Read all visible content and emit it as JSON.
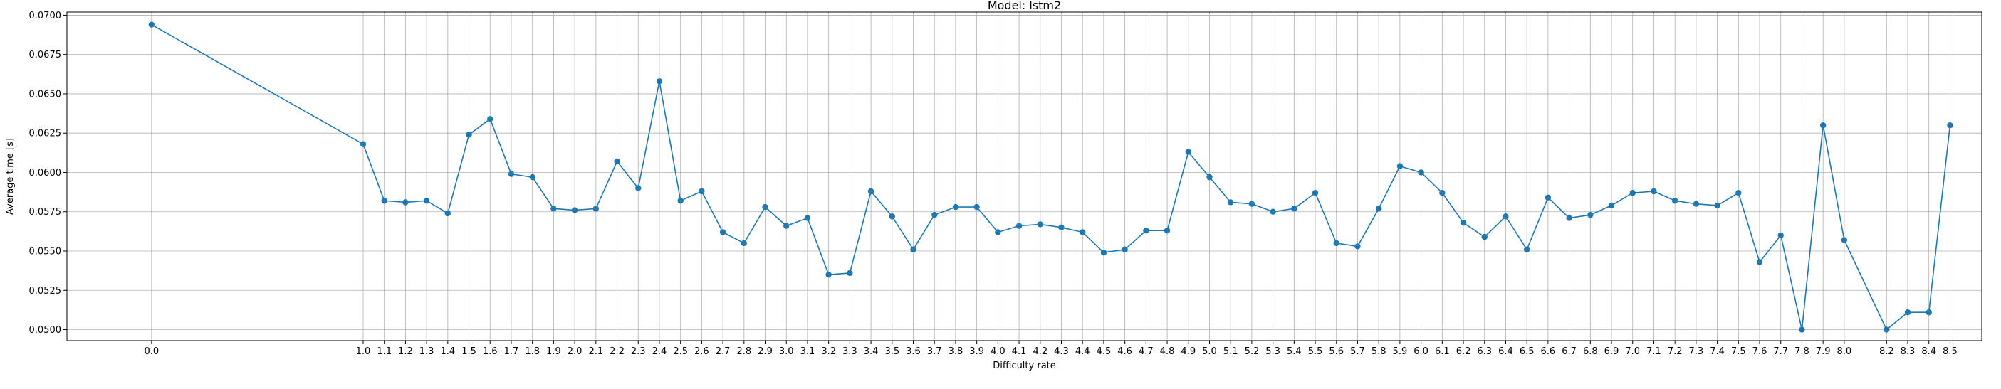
{
  "chart_data": {
    "type": "line",
    "title": "Model: lstm2",
    "xlabel": "Difficulty rate",
    "ylabel": "Average time [s]",
    "xlim": [
      -0.4,
      8.65
    ],
    "ylim": [
      0.0493,
      0.0702
    ],
    "grid": true,
    "y_ticks": [
      "0.0500",
      "0.0525",
      "0.0550",
      "0.0575",
      "0.0600",
      "0.0625",
      "0.0650",
      "0.0675",
      "0.0700"
    ],
    "x_ticks": [
      "0.0",
      "1.0",
      "1.1",
      "1.2",
      "1.3",
      "1.4",
      "1.5",
      "1.6",
      "1.7",
      "1.8",
      "1.9",
      "2.0",
      "2.1",
      "2.2",
      "2.3",
      "2.4",
      "2.5",
      "2.6",
      "2.7",
      "2.8",
      "2.9",
      "3.0",
      "3.1",
      "3.2",
      "3.3",
      "3.4",
      "3.5",
      "3.6",
      "3.7",
      "3.8",
      "3.9",
      "4.0",
      "4.1",
      "4.2",
      "4.3",
      "4.4",
      "4.5",
      "4.6",
      "4.7",
      "4.8",
      "4.9",
      "5.0",
      "5.1",
      "5.2",
      "5.3",
      "5.4",
      "5.5",
      "5.6",
      "5.7",
      "5.8",
      "5.9",
      "6.0",
      "6.1",
      "6.2",
      "6.3",
      "6.4",
      "6.5",
      "6.6",
      "6.7",
      "6.8",
      "6.9",
      "7.0",
      "7.1",
      "7.2",
      "7.3",
      "7.4",
      "7.5",
      "7.6",
      "7.7",
      "7.8",
      "7.9",
      "8.0",
      "8.2",
      "8.3",
      "8.4",
      "8.5"
    ],
    "series": [
      {
        "color": "#1f77b4",
        "x": [
          0.0,
          1.0,
          1.1,
          1.2,
          1.3,
          1.4,
          1.5,
          1.6,
          1.7,
          1.8,
          1.9,
          2.0,
          2.1,
          2.2,
          2.3,
          2.4,
          2.5,
          2.6,
          2.7,
          2.8,
          2.9,
          3.0,
          3.1,
          3.2,
          3.3,
          3.4,
          3.5,
          3.6,
          3.7,
          3.8,
          3.9,
          4.0,
          4.1,
          4.2,
          4.3,
          4.4,
          4.5,
          4.6,
          4.7,
          4.8,
          4.9,
          5.0,
          5.1,
          5.2,
          5.3,
          5.4,
          5.5,
          5.6,
          5.7,
          5.8,
          5.9,
          6.0,
          6.1,
          6.2,
          6.3,
          6.4,
          6.5,
          6.6,
          6.7,
          6.8,
          6.9,
          7.0,
          7.1,
          7.2,
          7.3,
          7.4,
          7.5,
          7.6,
          7.7,
          7.8,
          7.9,
          8.0,
          8.2,
          8.3,
          8.4,
          8.5
        ],
        "y": [
          0.0694,
          0.0618,
          0.0582,
          0.0581,
          0.0582,
          0.0574,
          0.0624,
          0.0634,
          0.0599,
          0.0597,
          0.0577,
          0.0576,
          0.0577,
          0.0607,
          0.059,
          0.0658,
          0.0582,
          0.0588,
          0.0562,
          0.0555,
          0.0578,
          0.0566,
          0.0571,
          0.0535,
          0.0536,
          0.0588,
          0.0572,
          0.0551,
          0.0573,
          0.0578,
          0.0578,
          0.0562,
          0.0566,
          0.0567,
          0.0565,
          0.0562,
          0.0549,
          0.0551,
          0.0563,
          0.0563,
          0.0613,
          0.0597,
          0.0581,
          0.058,
          0.0575,
          0.0577,
          0.0587,
          0.0555,
          0.0553,
          0.0577,
          0.0604,
          0.06,
          0.0587,
          0.0568,
          0.0559,
          0.0572,
          0.0551,
          0.0584,
          0.0571,
          0.0573,
          0.0579,
          0.0587,
          0.0588,
          0.0582,
          0.058,
          0.0579,
          0.0587,
          0.0543,
          0.056,
          0.05,
          0.063,
          0.0557,
          0.05,
          0.0511,
          0.0511,
          0.063
        ]
      }
    ]
  }
}
